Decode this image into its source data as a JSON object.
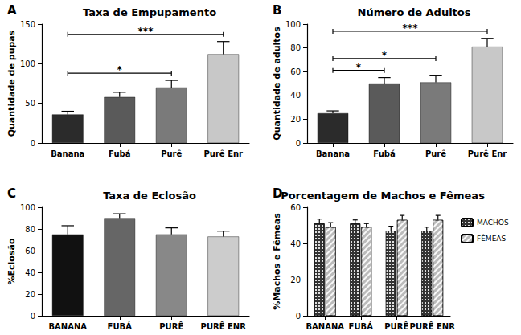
{
  "chart_data": [
    {
      "type": "bar",
      "panel_label": "A",
      "title": "Taxa de Empupamento",
      "y_label": "Quantidade de pupas",
      "categories": [
        "Banana",
        "Fubá",
        "Purê",
        "Purê Enr"
      ],
      "values": [
        36,
        58,
        70,
        112
      ],
      "errors": [
        4,
        6,
        9,
        16
      ],
      "colors": [
        "#2b2b2b",
        "#5a5a5a",
        "#7a7a7a",
        "#c8c8c8"
      ],
      "ylim": [
        0,
        150
      ],
      "yticks": [
        0,
        50,
        100,
        150
      ],
      "grid": false,
      "significance": [
        {
          "from": "Banana",
          "to": "Purê",
          "label": "*"
        },
        {
          "from": "Banana",
          "to": "Purê Enr",
          "label": "***"
        }
      ]
    },
    {
      "type": "bar",
      "panel_label": "B",
      "title": "Número de Adultos",
      "y_label": "Quantidade de adultos",
      "categories": [
        "Banana",
        "Fubá",
        "Purê",
        "Purê Enr"
      ],
      "values": [
        25,
        50,
        51,
        81
      ],
      "errors": [
        2,
        5,
        6,
        7
      ],
      "colors": [
        "#2b2b2b",
        "#5a5a5a",
        "#7a7a7a",
        "#c8c8c8"
      ],
      "ylim": [
        0,
        100
      ],
      "yticks": [
        0,
        20,
        40,
        60,
        80,
        100
      ],
      "grid": false,
      "significance": [
        {
          "from": "Banana",
          "to": "Fubá",
          "label": "*"
        },
        {
          "from": "Banana",
          "to": "Purê",
          "label": "*"
        },
        {
          "from": "Banana",
          "to": "Purê Enr",
          "label": "***"
        }
      ]
    },
    {
      "type": "bar",
      "panel_label": "C",
      "title": "Taxa de Eclosão",
      "y_label": "%Eclosão",
      "categories": [
        "BANANA",
        "FUBÁ",
        "PURÊ",
        "PURÊ ENR"
      ],
      "values": [
        75,
        90,
        75,
        73
      ],
      "errors": [
        8,
        4,
        6,
        5
      ],
      "colors": [
        "#111111",
        "#666666",
        "#888888",
        "#cccccc"
      ],
      "ylim": [
        0,
        100
      ],
      "yticks": [
        0,
        20,
        40,
        60,
        80,
        100
      ],
      "grid": false
    },
    {
      "type": "bar",
      "panel_label": "D",
      "title": "Porcentagem de Machos e Fêmeas",
      "y_label": "%Machos e Fêmeas",
      "categories": [
        "BANANA",
        "FUBÁ",
        "PURÊ",
        "PURÊ ENR"
      ],
      "series": [
        {
          "name": "MACHOS",
          "color": "#333333",
          "values": [
            51,
            51,
            47,
            47
          ],
          "errors": [
            2.5,
            2,
            2.5,
            2
          ]
        },
        {
          "name": "FÊMEAS",
          "color": "#bbbbbb",
          "values": [
            49,
            49,
            53,
            53
          ],
          "errors": [
            2.5,
            2,
            2.5,
            2.5
          ]
        }
      ],
      "ylim": [
        0,
        60
      ],
      "yticks": [
        0,
        20,
        40,
        60
      ],
      "grid": false,
      "legend": "right"
    }
  ]
}
